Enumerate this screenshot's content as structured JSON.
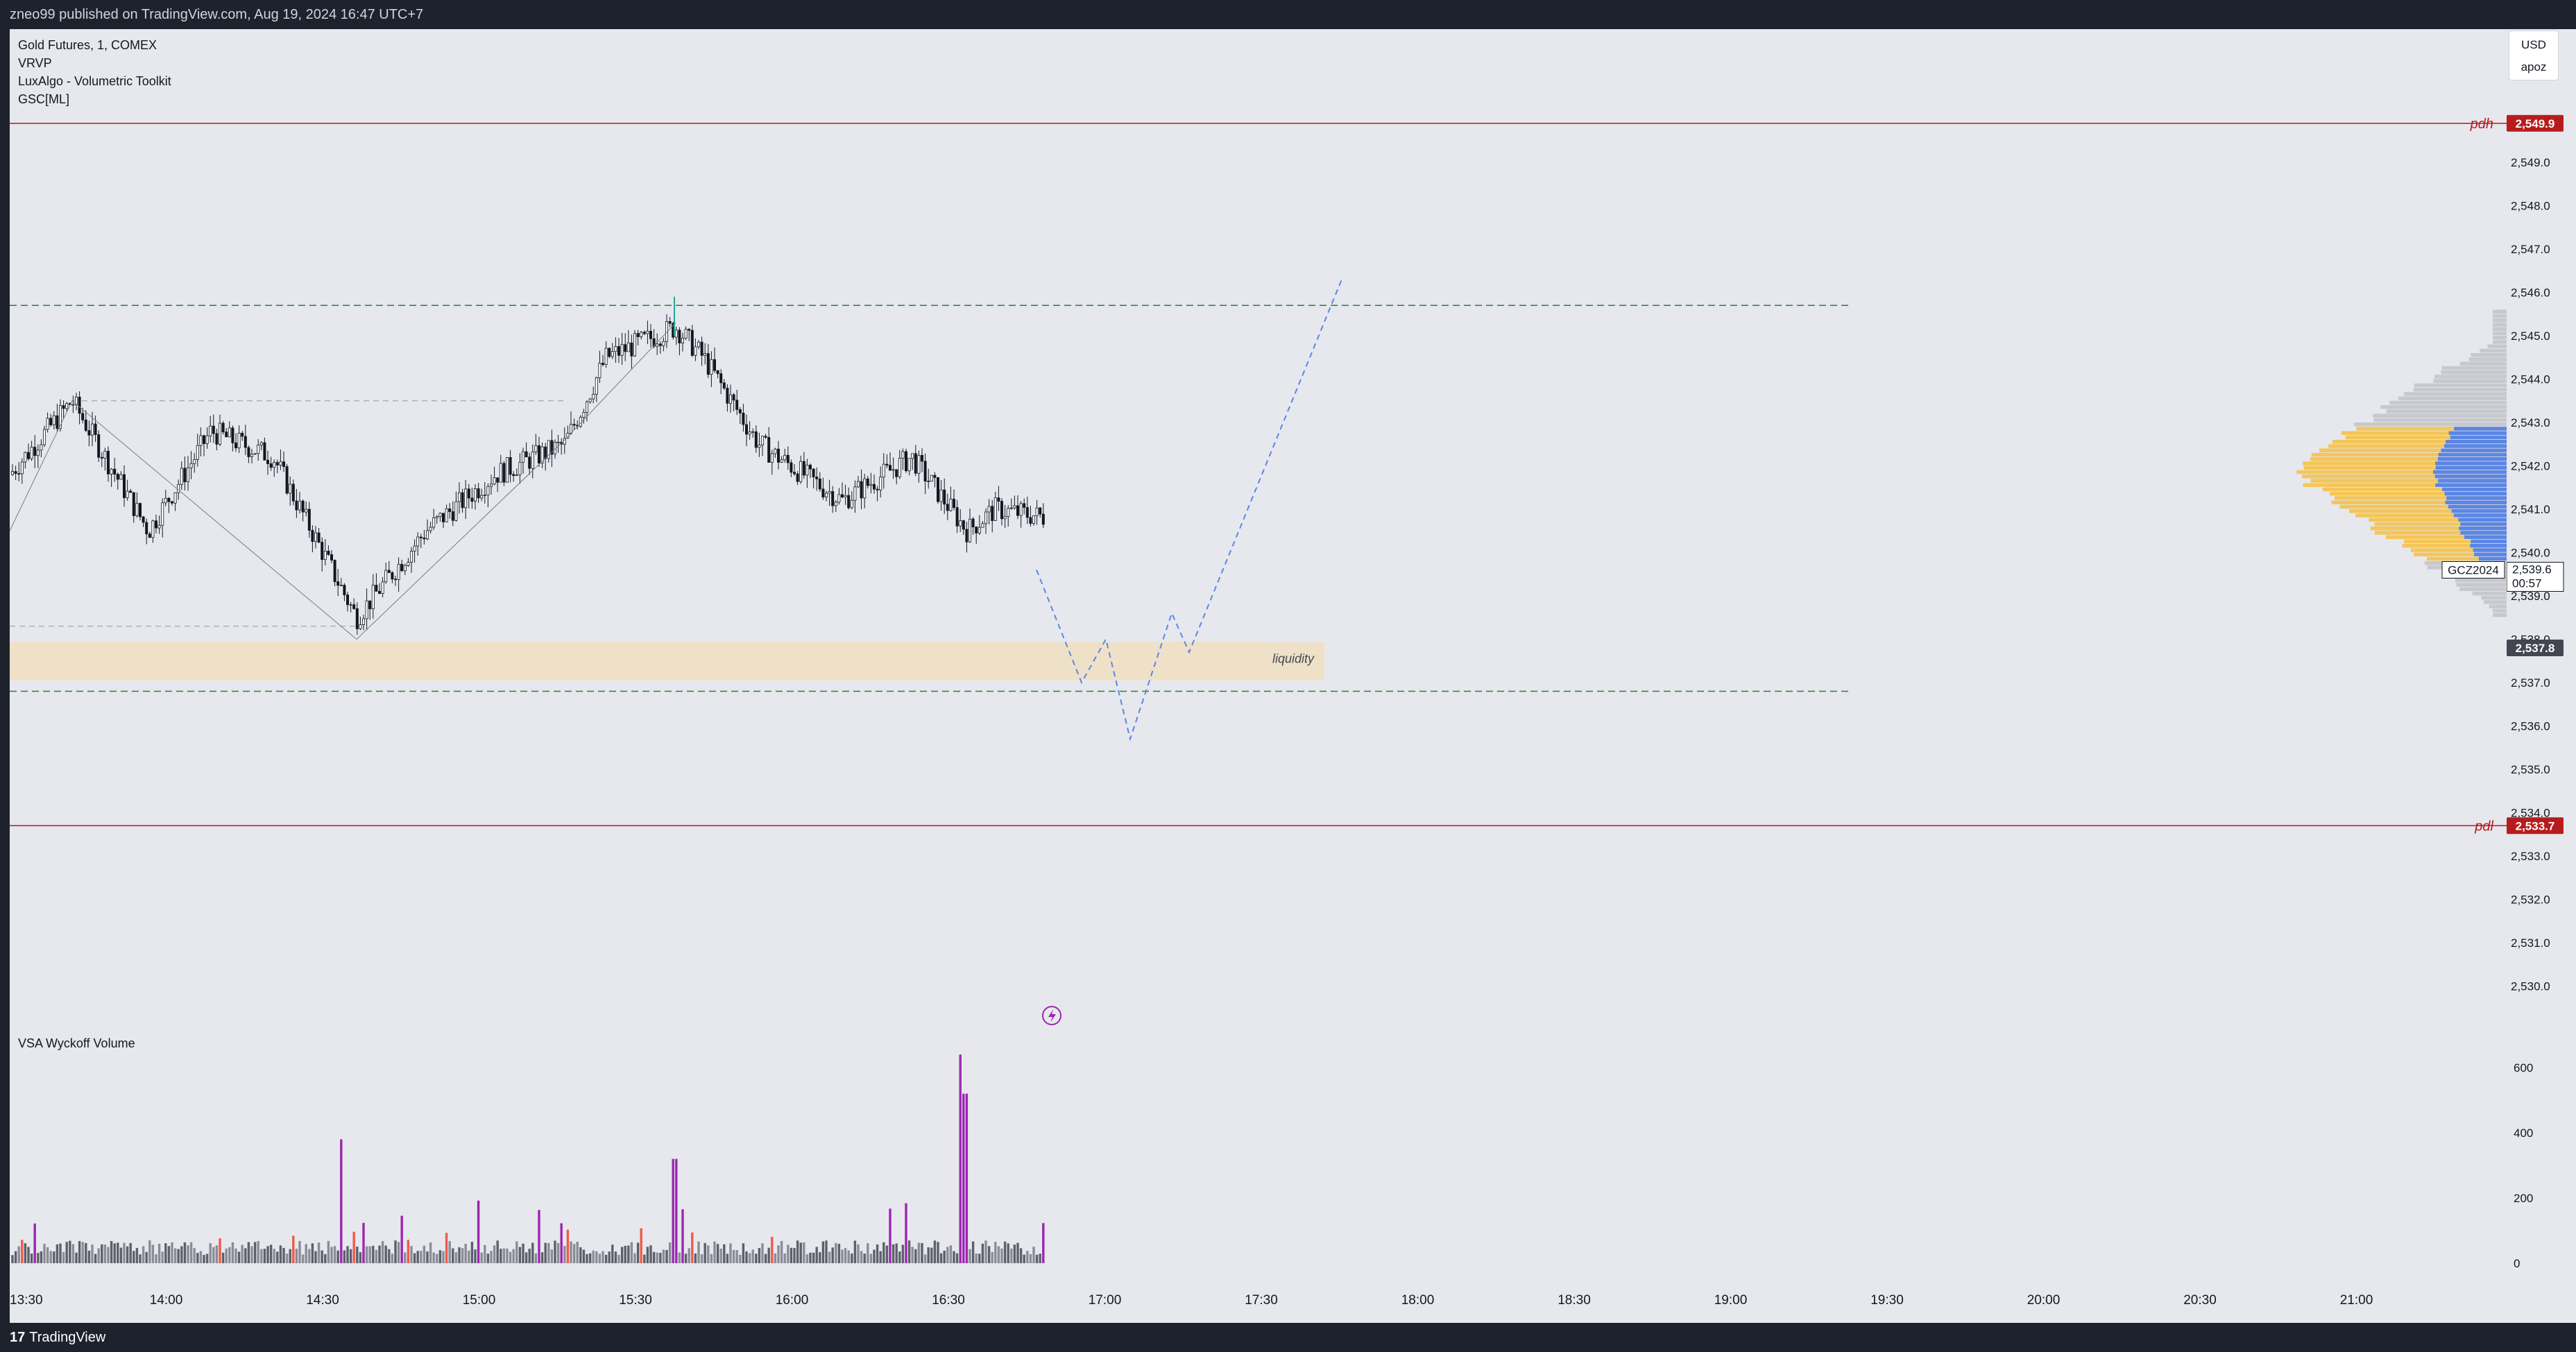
{
  "header": {
    "publisher": "zneo99 published on TradingView.com, Aug 19, 2024 16:47 UTC+7"
  },
  "legend": [
    "Gold Futures, 1, COMEX",
    "VRVP",
    "LuxAlgo - Volumetric Toolkit",
    "GSC[ML]"
  ],
  "volume_pane": {
    "title": "VSA Wyckoff Volume",
    "axis_ticks": [
      "600",
      "400",
      "200",
      "0"
    ]
  },
  "currency": {
    "code": "USD",
    "tz": "apoz"
  },
  "price_axis": {
    "ticks": [
      "2,549.0",
      "2,548.0",
      "2,547.0",
      "2,546.0",
      "2,545.0",
      "2,544.0",
      "2,543.0",
      "2,542.0",
      "2,541.0",
      "2,540.0",
      "2,539.0",
      "2,538.0",
      "2,537.0",
      "2,536.0",
      "2,535.0",
      "2,534.0",
      "2,533.0",
      "2,532.0",
      "2,531.0",
      "2,530.0"
    ],
    "pdh": {
      "label": "pdh",
      "value": "2,549.9",
      "color": "#b71c1c"
    },
    "pdl": {
      "label": "pdl",
      "value": "2,533.7",
      "color": "#b71c1c"
    },
    "current": {
      "symbol": "GCZ2024",
      "price": "2,539.6",
      "countdown": "00:57"
    },
    "marker": {
      "value": "2,537.8"
    }
  },
  "zone": {
    "label": "liquidity"
  },
  "time_axis": [
    "13:30",
    "14:00",
    "14:30",
    "15:00",
    "15:30",
    "16:00",
    "16:30",
    "17:00",
    "17:30",
    "18:00",
    "18:30",
    "19:00",
    "19:30",
    "20:00",
    "20:30",
    "21:00"
  ],
  "footer": {
    "brand": "TradingView",
    "brand_mark": "17"
  },
  "colors": {
    "bg": "#e6e8ee",
    "bull": "#ffffff",
    "bear": "#131722",
    "projection": "#5b86e5",
    "level": "#2e7d32",
    "zone": "#efe1c8",
    "vol_climax": "#9c27b0",
    "vol_red": "#f05a4a",
    "vrvp_blue": "#5b86e5",
    "vrvp_yellow": "#f4c65a"
  }
}
